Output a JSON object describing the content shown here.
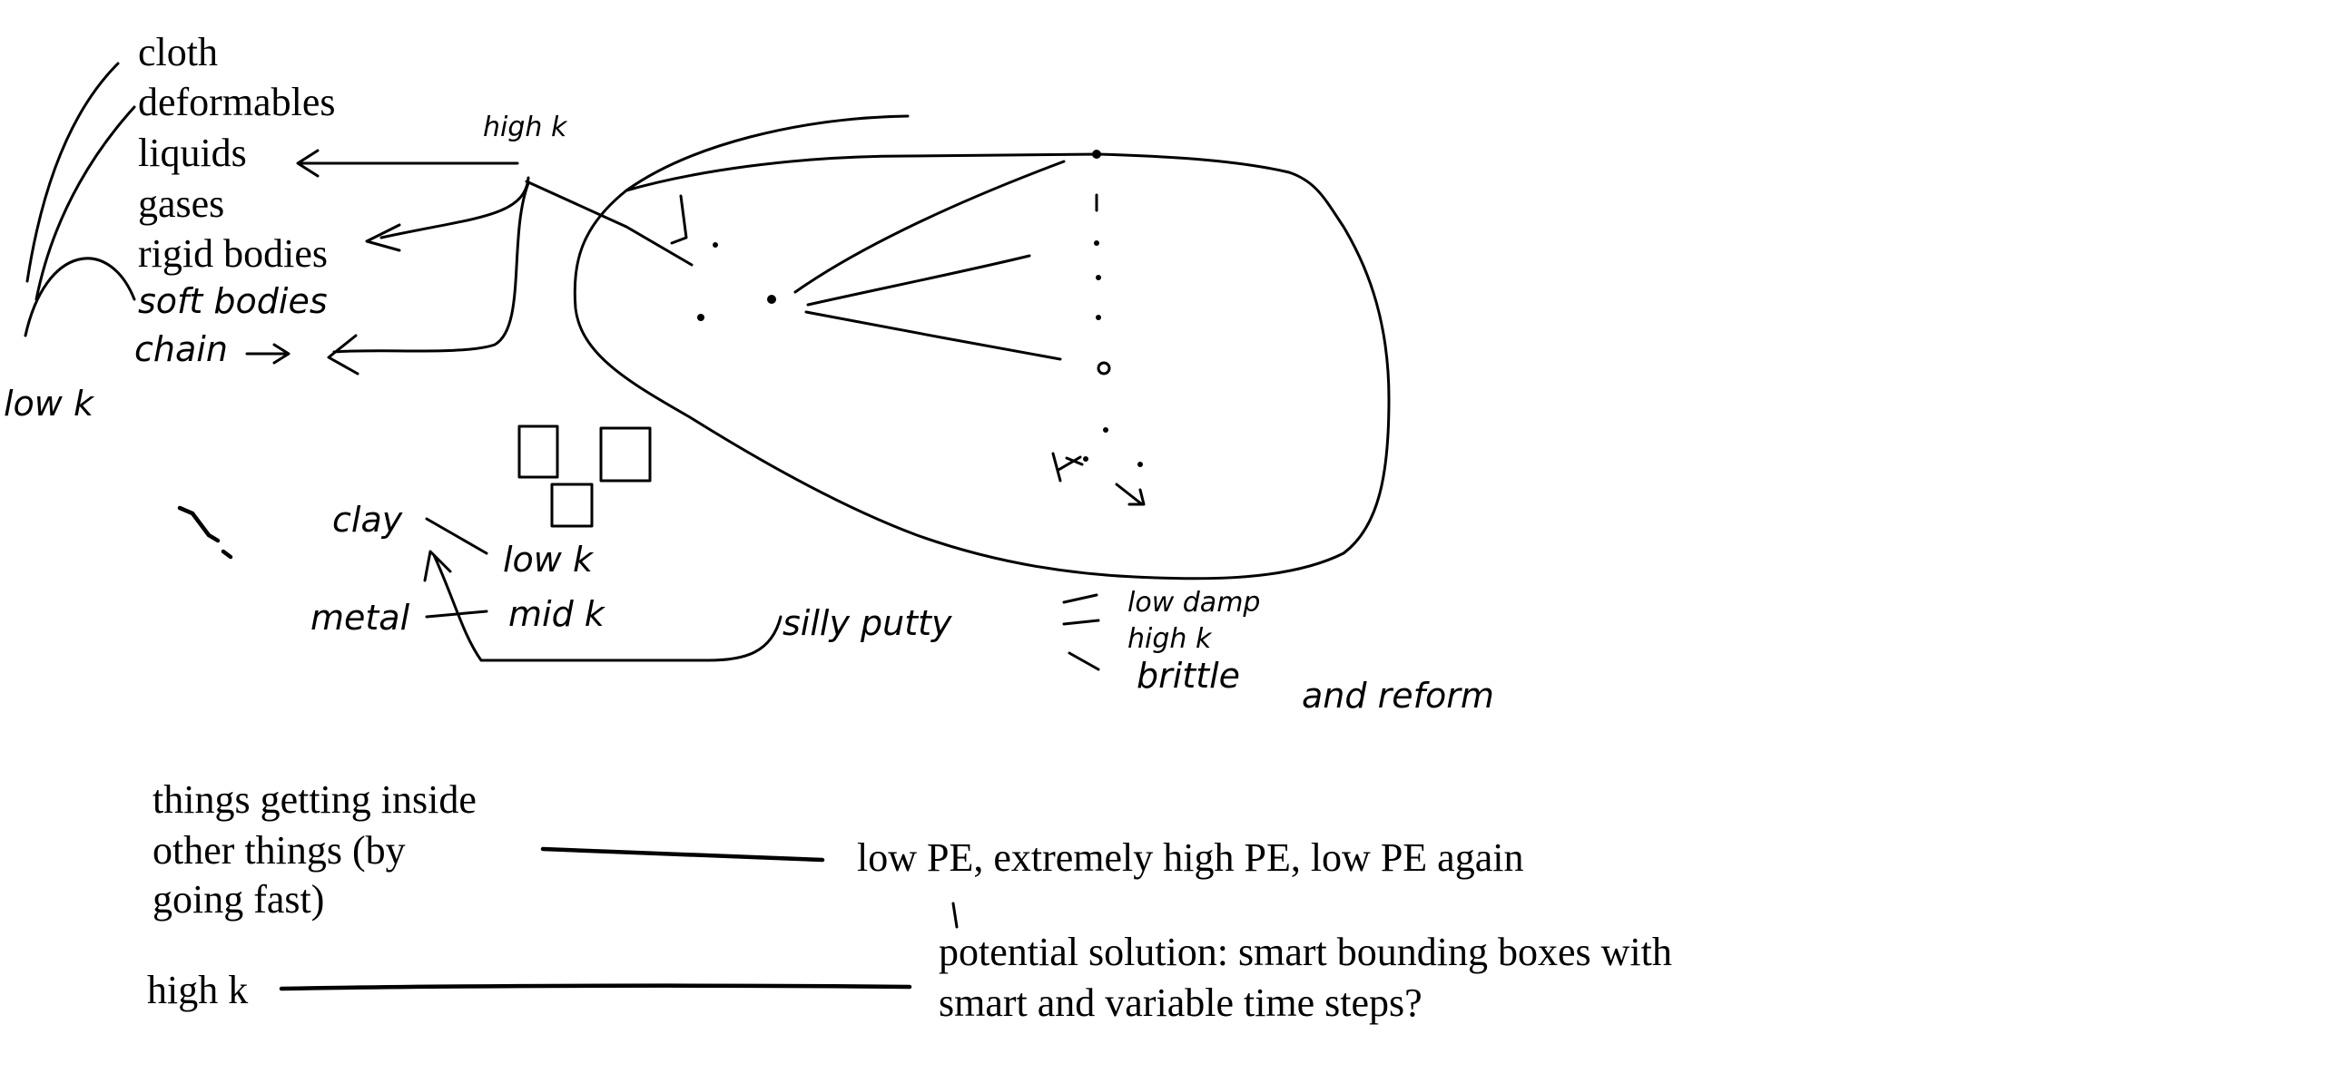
{
  "categories_list": [
    "cloth",
    "deformables",
    "liquids",
    "gases",
    "rigid bodies"
  ],
  "handwritten_categories": [
    "soft bodies",
    "chain"
  ],
  "labels": {
    "high_k_top": "high k",
    "low_k_left": "low k",
    "clay": "clay",
    "low_k_clay": "low k",
    "metal": "metal",
    "mid_k": "mid k",
    "silly_putty": "silly putty",
    "low_damp": "low damp",
    "high_k_putty": "high k",
    "brittle": "brittle",
    "and_reform": "and reform"
  },
  "notes": {
    "things_inside": [
      "things getting inside",
      "other things (by",
      "going fast)"
    ],
    "pe_sequence": "low PE, extremely high PE, low PE again",
    "high_k_bottom": "high k",
    "solution": [
      "potential solution: smart bounding boxes with",
      "smart and variable time steps?"
    ]
  },
  "colors": {
    "ink": "#000000",
    "background": "#ffffff"
  }
}
